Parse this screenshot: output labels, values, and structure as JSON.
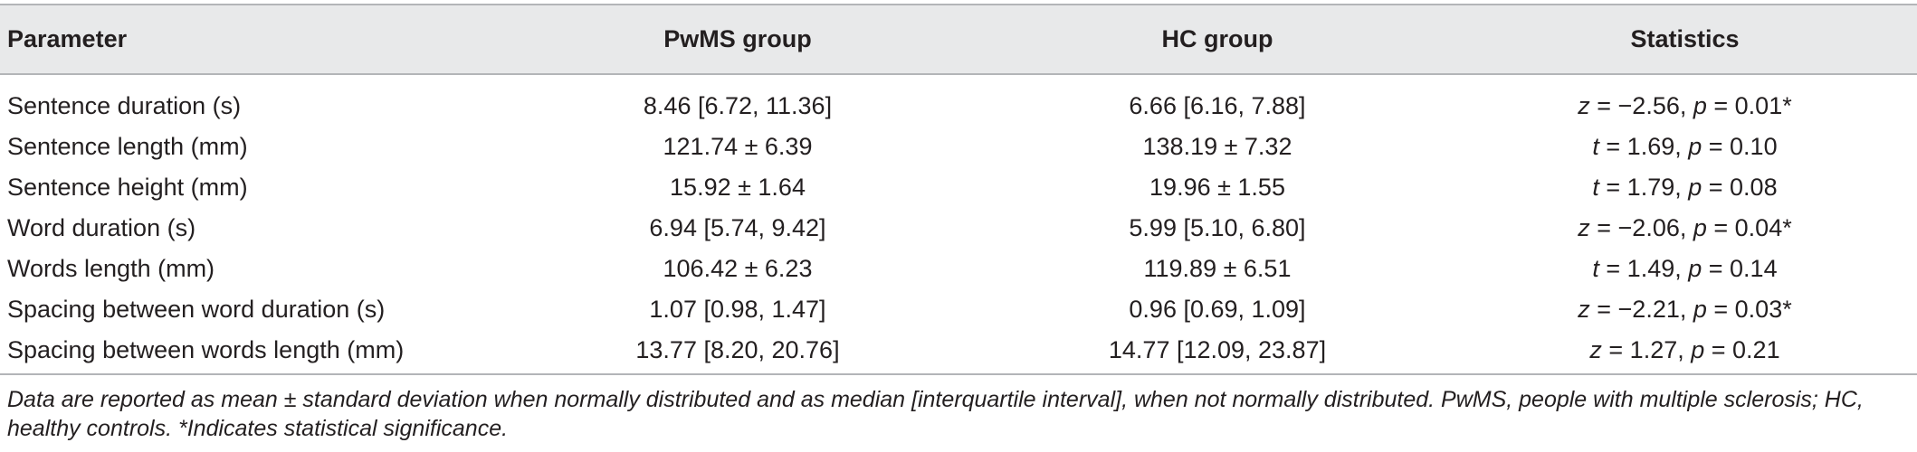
{
  "table": {
    "headers": [
      "Parameter",
      "PwMS group",
      "HC group",
      "Statistics"
    ],
    "rows": [
      {
        "parameter": "Sentence duration (s)",
        "pwms": "8.46 [6.72, 11.36]",
        "hc": "6.66 [6.16, 7.88]",
        "stat_var1": "z",
        "stat_val1": " = −2.56, ",
        "stat_var2": "p",
        "stat_val2": " = 0.01*"
      },
      {
        "parameter": "Sentence length (mm)",
        "pwms": "121.74 ± 6.39",
        "hc": "138.19 ± 7.32",
        "stat_var1": "t",
        "stat_val1": " = 1.69, ",
        "stat_var2": "p",
        "stat_val2": " = 0.10"
      },
      {
        "parameter": "Sentence height (mm)",
        "pwms": "15.92 ± 1.64",
        "hc": "19.96 ± 1.55",
        "stat_var1": "t",
        "stat_val1": " = 1.79, ",
        "stat_var2": "p",
        "stat_val2": " = 0.08"
      },
      {
        "parameter": "Word duration (s)",
        "pwms": "6.94 [5.74, 9.42]",
        "hc": "5.99 [5.10, 6.80]",
        "stat_var1": "z",
        "stat_val1": " = −2.06, ",
        "stat_var2": "p",
        "stat_val2": " = 0.04*"
      },
      {
        "parameter": "Words length (mm)",
        "pwms": "106.42 ± 6.23",
        "hc": "119.89 ± 6.51",
        "stat_var1": "t",
        "stat_val1": " = 1.49, ",
        "stat_var2": "p",
        "stat_val2": " = 0.14"
      },
      {
        "parameter": "Spacing between word duration (s)",
        "pwms": "1.07 [0.98, 1.47]",
        "hc": "0.96 [0.69, 1.09]",
        "stat_var1": "z",
        "stat_val1": " = −2.21, ",
        "stat_var2": "p",
        "stat_val2": " = 0.03*"
      },
      {
        "parameter": "Spacing between words length (mm)",
        "pwms": "13.77 [8.20, 20.76]",
        "hc": "14.77 [12.09, 23.87]",
        "stat_var1": "z",
        "stat_val1": " = 1.27, ",
        "stat_var2": "p",
        "stat_val2": " = 0.21"
      }
    ]
  },
  "footnote": "Data are reported as mean ± standard deviation when normally distributed and as median [interquartile interval], when not normally distributed. PwMS, people with multiple sclerosis; HC, healthy controls. *Indicates statistical significance."
}
